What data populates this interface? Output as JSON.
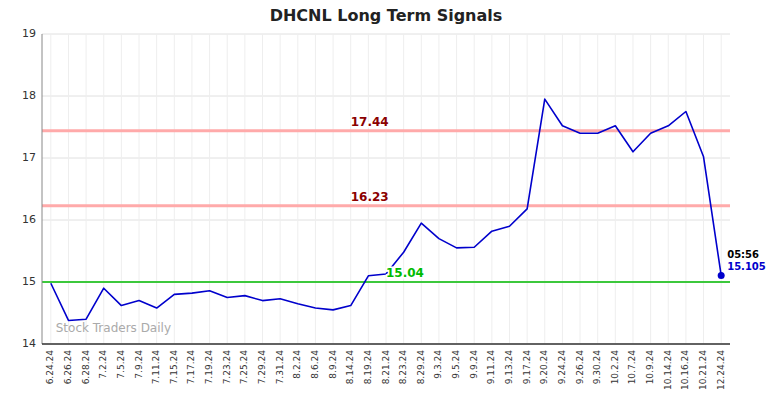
{
  "chart_data": {
    "type": "line",
    "title": "DHCNL Long Term Signals",
    "categories": [
      "6.24.24",
      "6.26.24",
      "6.28.24",
      "7.2.24",
      "7.5.24",
      "7.9.24",
      "7.11.24",
      "7.15.24",
      "7.17.24",
      "7.19.24",
      "7.23.24",
      "7.25.24",
      "7.29.24",
      "7.31.24",
      "8.2.24",
      "8.6.24",
      "8.9.24",
      "8.14.24",
      "8.19.24",
      "8.21.24",
      "8.23.24",
      "8.29.24",
      "9.3.24",
      "9.5.24",
      "9.9.24",
      "9.11.24",
      "9.13.24",
      "9.17.24",
      "9.20.24",
      "9.24.24",
      "9.26.24",
      "9.30.24",
      "10.2.24",
      "10.7.24",
      "10.9.24",
      "10.14.24",
      "10.16.24",
      "10.21.24",
      "12.24.24"
    ],
    "values": [
      14.98,
      14.38,
      14.4,
      14.9,
      14.62,
      14.7,
      14.58,
      14.8,
      14.82,
      14.86,
      14.75,
      14.78,
      14.7,
      14.73,
      14.65,
      14.58,
      14.55,
      14.62,
      15.1,
      15.13,
      15.48,
      15.95,
      15.7,
      15.55,
      15.56,
      15.82,
      15.9,
      16.18,
      17.95,
      17.52,
      17.4,
      17.4,
      17.52,
      17.1,
      17.4,
      17.52,
      17.75,
      17.02,
      15.105
    ],
    "color": "#0000cc",
    "last_value": 15.105,
    "ylim": [
      14,
      19
    ],
    "yticks": [
      14,
      15,
      16,
      17,
      18,
      19
    ],
    "grid": true,
    "reference_lines": [
      {
        "value": 15.0,
        "label": "15.04",
        "color": "#00bb00",
        "label_color": "#00bb00"
      },
      {
        "value": 17.44,
        "label": "17.44",
        "color": "#ffaaaa",
        "label_color": "#8b0000"
      },
      {
        "value": 16.23,
        "label": "16.23",
        "color": "#ffaaaa",
        "label_color": "#8b0000"
      }
    ],
    "annotations": [
      "05:56",
      "15.105"
    ],
    "watermark": "Stock Traders Daily"
  }
}
